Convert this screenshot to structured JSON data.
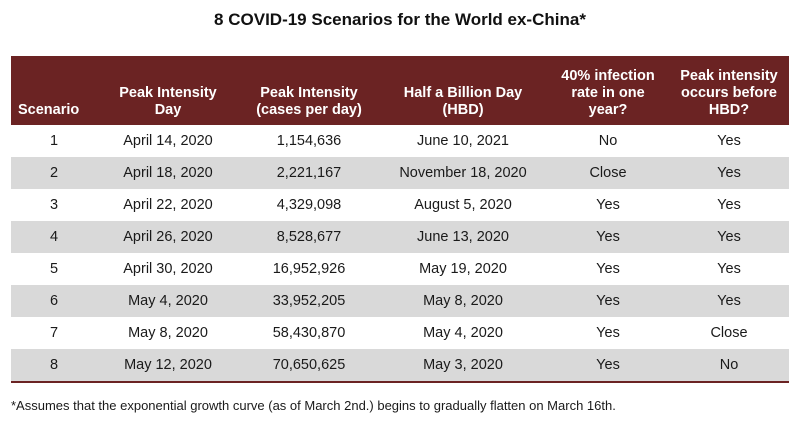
{
  "title": "8 COVID-19 Scenarios for the World ex-China*",
  "colors": {
    "header_bg": "#6b2323",
    "header_text": "#ffffff",
    "shaded_row": "#d9d9d9"
  },
  "table": {
    "headers": [
      [
        "Scenario"
      ],
      [
        "Peak Intensity",
        "Day"
      ],
      [
        "Peak Intensity",
        "(cases per day)"
      ],
      [
        "Half a Billion Day",
        "(HBD)"
      ],
      [
        "40% infection",
        "rate in one year?"
      ],
      [
        "Peak intensity",
        "occurs before",
        "HBD?"
      ]
    ],
    "rows": [
      [
        "1",
        "April 14, 2020",
        "1,154,636",
        "June 10, 2021",
        "No",
        "Yes"
      ],
      [
        "2",
        "April 18, 2020",
        "2,221,167",
        "November 18, 2020",
        "Close",
        "Yes"
      ],
      [
        "3",
        "April 22, 2020",
        "4,329,098",
        "August 5, 2020",
        "Yes",
        "Yes"
      ],
      [
        "4",
        "April 26, 2020",
        "8,528,677",
        "June 13, 2020",
        "Yes",
        "Yes"
      ],
      [
        "5",
        "April 30, 2020",
        "16,952,926",
        "May 19, 2020",
        "Yes",
        "Yes"
      ],
      [
        "6",
        "May 4, 2020",
        "33,952,205",
        "May 8, 2020",
        "Yes",
        "Yes"
      ],
      [
        "7",
        "May 8, 2020",
        "58,430,870",
        "May 4, 2020",
        "Yes",
        "Close"
      ],
      [
        "8",
        "May 12, 2020",
        "70,650,625",
        "May 3, 2020",
        "Yes",
        "No"
      ]
    ]
  },
  "footnote": "*Assumes that the exponential growth curve (as of March 2nd.) begins to gradually flatten on March 16th."
}
